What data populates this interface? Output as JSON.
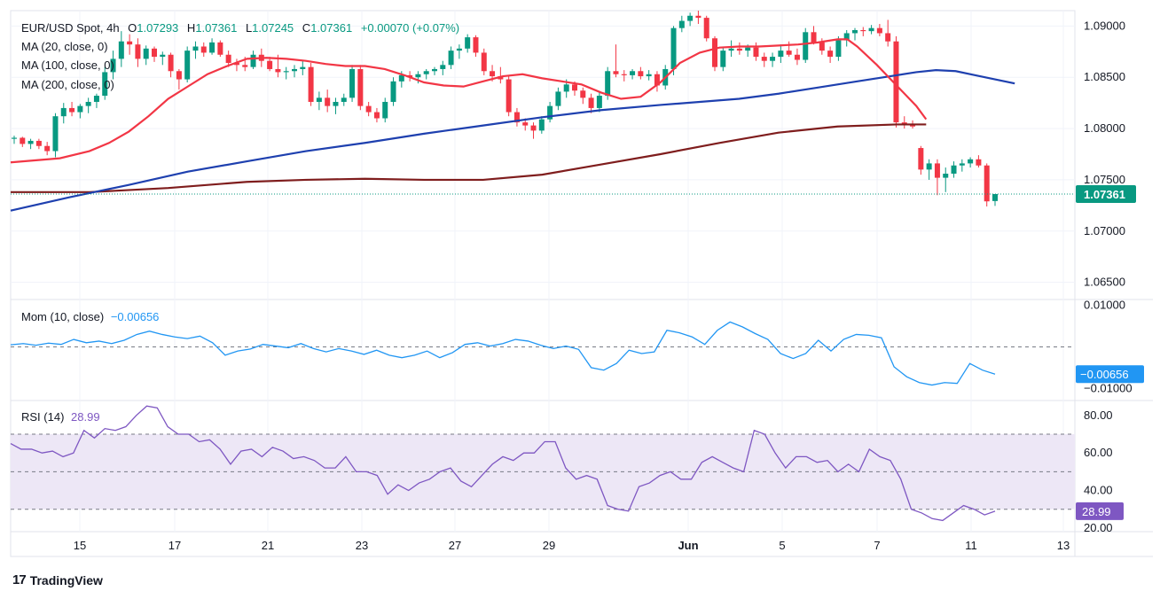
{
  "legend": {
    "symbol": "EUR/USD Spot, 4h",
    "open_label": "O",
    "open": "1.07293",
    "high_label": "H",
    "high": "1.07361",
    "low_label": "L",
    "low": "1.07245",
    "close_label": "C",
    "close": "1.07361",
    "change": "+0.00070 (+0.07%)",
    "ma20": "MA (20, close, 0)",
    "ma100": "MA (100, close, 0)",
    "ma200": "MA (200, close, 0)",
    "mom_title": "Mom (10, close)",
    "mom_value": "−0.00656",
    "rsi_title": "RSI (14)",
    "rsi_value": "28.99"
  },
  "brand": {
    "name": "TradingView",
    "logo": "17"
  },
  "colors": {
    "up": "#089981",
    "down": "#f23645",
    "ma20": "#f23645",
    "ma100": "#1e40af",
    "ma200": "#7f1d1d",
    "mom": "#2196f3",
    "rsi": "#7e57c2",
    "rsi_band": "#ede7f6",
    "price_badge": "#089981",
    "mom_badge": "#2196f3",
    "rsi_badge": "#7e57c2"
  },
  "chart_data": [
    {
      "type": "candlestick",
      "title": "EUR/USD Spot, 4h",
      "x_ticks": [
        "15",
        "17",
        "21",
        "23",
        "27",
        "29",
        "Jun",
        "5",
        "7",
        "11",
        "13"
      ],
      "y_ticks": [
        "1.09000",
        "1.08500",
        "1.08000",
        "1.07500",
        "1.07000",
        "1.06500"
      ],
      "ylim": [
        1.0635,
        1.0915
      ],
      "last_price_label": "1.07361",
      "last_price": 1.07361,
      "candles": [
        [
          1.079,
          1.0793,
          1.0785,
          1.0791
        ],
        [
          1.0791,
          1.0792,
          1.0782,
          1.0785
        ],
        [
          1.0785,
          1.079,
          1.078,
          1.0788
        ],
        [
          1.0788,
          1.079,
          1.078,
          1.0783
        ],
        [
          1.0783,
          1.0787,
          1.0774,
          1.0778
        ],
        [
          1.0778,
          1.0815,
          1.0772,
          1.0812
        ],
        [
          1.0812,
          1.0825,
          1.0805,
          1.082
        ],
        [
          1.082,
          1.0826,
          1.0812,
          1.0816
        ],
        [
          1.0816,
          1.0824,
          1.081,
          1.0822
        ],
        [
          1.0822,
          1.083,
          1.0815,
          1.0826
        ],
        [
          1.0826,
          1.0834,
          1.082,
          1.0832
        ],
        [
          1.0832,
          1.086,
          1.0828,
          1.0855
        ],
        [
          1.0855,
          1.0876,
          1.0848,
          1.0868
        ],
        [
          1.0868,
          1.0895,
          1.086,
          1.0885
        ],
        [
          1.0885,
          1.0892,
          1.0872,
          1.0882
        ],
        [
          1.0882,
          1.0888,
          1.086,
          1.0868
        ],
        [
          1.0868,
          1.0881,
          1.0862,
          1.0878
        ],
        [
          1.0878,
          1.088,
          1.0865,
          1.087
        ],
        [
          1.087,
          1.0875,
          1.0862,
          1.0872
        ],
        [
          1.0872,
          1.0874,
          1.085,
          1.0856
        ],
        [
          1.0856,
          1.0858,
          1.0838,
          1.0848
        ],
        [
          1.0848,
          1.088,
          1.0845,
          1.0876
        ],
        [
          1.0876,
          1.0885,
          1.0868,
          1.088
        ],
        [
          1.088,
          1.0884,
          1.087,
          1.0874
        ],
        [
          1.0874,
          1.0888,
          1.0872,
          1.0884
        ],
        [
          1.0884,
          1.0886,
          1.087,
          1.0872
        ],
        [
          1.0872,
          1.0876,
          1.086,
          1.0864
        ],
        [
          1.0864,
          1.0868,
          1.0856,
          1.0862
        ],
        [
          1.0862,
          1.087,
          1.0856,
          1.086
        ],
        [
          1.086,
          1.0876,
          1.0858,
          1.0872
        ],
        [
          1.0872,
          1.0878,
          1.086,
          1.0866
        ],
        [
          1.0866,
          1.087,
          1.0856,
          1.0858
        ],
        [
          1.0858,
          1.0872,
          1.085,
          1.0855
        ],
        [
          1.0855,
          1.086,
          1.0848,
          1.0856
        ],
        [
          1.0856,
          1.0862,
          1.085,
          1.0858
        ],
        [
          1.0858,
          1.0866,
          1.0852,
          1.086
        ],
        [
          1.086,
          1.0864,
          1.0822,
          1.0826
        ],
        [
          1.0826,
          1.0836,
          1.0818,
          1.083
        ],
        [
          1.083,
          1.0838,
          1.0816,
          1.0822
        ],
        [
          1.0822,
          1.083,
          1.0814,
          1.0826
        ],
        [
          1.0826,
          1.0834,
          1.0822,
          1.083
        ],
        [
          1.083,
          1.0862,
          1.0826,
          1.0858
        ],
        [
          1.0858,
          1.0862,
          1.0818,
          1.0822
        ],
        [
          1.0822,
          1.0826,
          1.0812,
          1.0816
        ],
        [
          1.0816,
          1.082,
          1.0806,
          1.081
        ],
        [
          1.081,
          1.083,
          1.0806,
          1.0826
        ],
        [
          1.0826,
          1.085,
          1.0822,
          1.0846
        ],
        [
          1.0846,
          1.0856,
          1.084,
          1.0852
        ],
        [
          1.0852,
          1.0856,
          1.0846,
          1.085
        ],
        [
          1.085,
          1.0856,
          1.0844,
          1.0853
        ],
        [
          1.0853,
          1.0858,
          1.0848,
          1.0856
        ],
        [
          1.0856,
          1.086,
          1.0852,
          1.0858
        ],
        [
          1.0858,
          1.0866,
          1.0852,
          1.0862
        ],
        [
          1.0862,
          1.088,
          1.0858,
          1.0876
        ],
        [
          1.0876,
          1.0882,
          1.0868,
          1.0878
        ],
        [
          1.0878,
          1.0892,
          1.0874,
          1.0889
        ],
        [
          1.0889,
          1.0891,
          1.087,
          1.0874
        ],
        [
          1.0874,
          1.0878,
          1.0852,
          1.0856
        ],
        [
          1.0856,
          1.0862,
          1.0846,
          1.0851
        ],
        [
          1.0851,
          1.086,
          1.0844,
          1.0848
        ],
        [
          1.0848,
          1.0852,
          1.0812,
          1.0816
        ],
        [
          1.0816,
          1.082,
          1.0802,
          1.0806
        ],
        [
          1.0806,
          1.081,
          1.0798,
          1.0803
        ],
        [
          1.0803,
          1.0806,
          1.079,
          1.0798
        ],
        [
          1.0798,
          1.0812,
          1.0795,
          1.0809
        ],
        [
          1.0809,
          1.0826,
          1.0806,
          1.0822
        ],
        [
          1.0822,
          1.084,
          1.0818,
          1.0836
        ],
        [
          1.0836,
          1.0848,
          1.083,
          1.0843
        ],
        [
          1.0843,
          1.0846,
          1.0832,
          1.0837
        ],
        [
          1.0837,
          1.084,
          1.0824,
          1.083
        ],
        [
          1.083,
          1.0834,
          1.0815,
          1.082
        ],
        [
          1.082,
          1.0836,
          1.0816,
          1.0832
        ],
        [
          1.0832,
          1.086,
          1.0828,
          1.0856
        ],
        [
          1.0856,
          1.0882,
          1.085,
          1.0853
        ],
        [
          1.0853,
          1.0857,
          1.0846,
          1.0852
        ],
        [
          1.0852,
          1.0858,
          1.0848,
          1.0856
        ],
        [
          1.0856,
          1.086,
          1.0848,
          1.0851
        ],
        [
          1.0851,
          1.0857,
          1.0847,
          1.0853
        ],
        [
          1.0853,
          1.0856,
          1.0836,
          1.0842
        ],
        [
          1.0842,
          1.0862,
          1.0838,
          1.0858
        ],
        [
          1.0858,
          1.09,
          1.0852,
          1.0898
        ],
        [
          1.0898,
          1.091,
          1.0894,
          1.0905
        ],
        [
          1.0905,
          1.0913,
          1.09,
          1.091
        ],
        [
          1.091,
          1.0915,
          1.0902,
          1.0908
        ],
        [
          1.0908,
          1.091,
          1.0885,
          1.0888
        ],
        [
          1.0888,
          1.089,
          1.0856,
          1.086
        ],
        [
          1.086,
          1.088,
          1.0856,
          1.0876
        ],
        [
          1.0876,
          1.0886,
          1.087,
          1.0878
        ],
        [
          1.0878,
          1.0884,
          1.0872,
          1.0876
        ],
        [
          1.0876,
          1.0882,
          1.087,
          1.0879
        ],
        [
          1.0879,
          1.0884,
          1.0866,
          1.087
        ],
        [
          1.087,
          1.0874,
          1.086,
          1.0866
        ],
        [
          1.0866,
          1.0874,
          1.086,
          1.087
        ],
        [
          1.087,
          1.0882,
          1.0864,
          1.0876
        ],
        [
          1.0876,
          1.0885,
          1.087,
          1.0872
        ],
        [
          1.0872,
          1.0878,
          1.0862,
          1.0867
        ],
        [
          1.0867,
          1.0898,
          1.0864,
          1.0894
        ],
        [
          1.0894,
          1.09,
          1.0882,
          1.0884
        ],
        [
          1.0884,
          1.0888,
          1.0872,
          1.0876
        ],
        [
          1.0876,
          1.088,
          1.0864,
          1.087
        ],
        [
          1.087,
          1.089,
          1.0866,
          1.0886
        ],
        [
          1.0886,
          1.0896,
          1.088,
          1.0893
        ],
        [
          1.0893,
          1.0898,
          1.0886,
          1.0896
        ],
        [
          1.0896,
          1.0899,
          1.089,
          1.0895
        ],
        [
          1.0895,
          1.0901,
          1.0892,
          1.0898
        ],
        [
          1.0898,
          1.0902,
          1.089,
          1.0893
        ],
        [
          1.0893,
          1.0906,
          1.088,
          1.0885
        ],
        [
          1.0885,
          1.089,
          1.0801,
          1.0806
        ],
        [
          1.0806,
          1.0812,
          1.08,
          1.0804
        ],
        [
          1.0804,
          1.0808,
          1.08,
          1.0802
        ],
        [
          1.0781,
          1.0783,
          1.0755,
          1.076
        ],
        [
          1.076,
          1.077,
          1.075,
          1.0766
        ],
        [
          1.0766,
          1.077,
          1.0735,
          1.0752
        ],
        [
          1.0752,
          1.0762,
          1.0738,
          1.0756
        ],
        [
          1.0756,
          1.0768,
          1.0752,
          1.0764
        ],
        [
          1.0764,
          1.077,
          1.0758,
          1.0766
        ],
        [
          1.0766,
          1.0772,
          1.0762,
          1.077
        ],
        [
          1.077,
          1.0774,
          1.0762,
          1.0764
        ],
        [
          1.0764,
          1.0766,
          1.0724,
          1.0729
        ],
        [
          1.07293,
          1.07361,
          1.07245,
          1.07361
        ]
      ],
      "ma20": [
        1.0767,
        1.0771,
        1.0778,
        1.0786,
        1.0797,
        1.0812,
        1.0829,
        1.0841,
        1.0853,
        1.0861,
        1.0868,
        1.0869,
        1.0868,
        1.0866,
        1.0863,
        1.0861,
        1.0861,
        1.0858,
        1.0852,
        1.0845,
        1.0842,
        1.0841,
        1.0846,
        1.0851,
        1.0853,
        1.0849,
        1.0846,
        1.0843,
        1.0835,
        1.0829,
        1.0831,
        1.0845,
        1.0864,
        1.0874,
        1.0879,
        1.088,
        1.088,
        1.0881,
        1.0882,
        1.0884,
        1.0887,
        1.0887,
        1.088,
        1.0862,
        1.0842,
        1.0822,
        1.0809
      ],
      "ma20_x": [
        0.0,
        0.05,
        0.08,
        0.1,
        0.12,
        0.14,
        0.16,
        0.18,
        0.2,
        0.22,
        0.24,
        0.26,
        0.28,
        0.3,
        0.32,
        0.34,
        0.36,
        0.38,
        0.4,
        0.42,
        0.44,
        0.46,
        0.48,
        0.5,
        0.52,
        0.54,
        0.56,
        0.58,
        0.6,
        0.62,
        0.64,
        0.66,
        0.68,
        0.7,
        0.72,
        0.74,
        0.76,
        0.78,
        0.8,
        0.82,
        0.84,
        0.85,
        0.86,
        0.88,
        0.9,
        0.92,
        0.93
      ],
      "ma100": [
        1.072,
        1.0733,
        1.0745,
        1.0758,
        1.0768,
        1.0778,
        1.0786,
        1.0795,
        1.0803,
        1.0811,
        1.0818,
        1.0823,
        1.0826,
        1.0829,
        1.0834,
        1.084,
        1.0846,
        1.0852,
        1.0855,
        1.0857,
        1.0856,
        1.0852,
        1.0848,
        1.0844
      ],
      "ma100_x": [
        0.0,
        0.06,
        0.12,
        0.18,
        0.24,
        0.3,
        0.36,
        0.42,
        0.48,
        0.54,
        0.6,
        0.66,
        0.7,
        0.74,
        0.78,
        0.82,
        0.86,
        0.9,
        0.92,
        0.94,
        0.96,
        0.98,
        1.0,
        1.02
      ],
      "ma200": [
        1.0738,
        1.0738,
        1.0742,
        1.0748,
        1.075,
        1.0751,
        1.075,
        1.075,
        1.0755,
        1.0765,
        1.0775,
        1.0786,
        1.0796,
        1.0802,
        1.0804,
        1.0804
      ],
      "ma200_x": [
        0.0,
        0.08,
        0.16,
        0.24,
        0.3,
        0.36,
        0.42,
        0.48,
        0.54,
        0.6,
        0.66,
        0.72,
        0.78,
        0.84,
        0.9,
        0.93
      ],
      "x_range": [
        0,
        1.0
      ]
    },
    {
      "type": "line",
      "title": "Mom (10, close)",
      "y_ticks": [
        "0.01000",
        "−0.01000"
      ],
      "ylim": [
        -0.0125,
        0.011
      ],
      "zero_line": 0.0,
      "last_value": -0.00656,
      "values": [
        0.0005,
        0.0008,
        0.0004,
        0.0009,
        0.0006,
        0.0018,
        0.001,
        0.0014,
        0.0008,
        0.0016,
        0.003,
        0.0038,
        0.003,
        0.0024,
        0.002,
        0.0026,
        0.001,
        -0.002,
        -0.001,
        -0.0005,
        0.0006,
        0.0002,
        -0.0002,
        0.0008,
        -0.0004,
        -0.0012,
        -0.0004,
        -0.001,
        -0.0018,
        -0.0008,
        -0.002,
        -0.0026,
        -0.002,
        -0.001,
        -0.0026,
        -0.0014,
        0.0006,
        0.001,
        0.0002,
        0.0008,
        0.0018,
        0.0014,
        0.0004,
        -0.0004,
        0.0002,
        -0.0006,
        -0.005,
        -0.0056,
        -0.004,
        -0.0008,
        -0.0016,
        -0.0012,
        0.004,
        0.0034,
        0.0024,
        0.0006,
        0.004,
        0.006,
        0.0048,
        0.0032,
        0.0018,
        -0.0016,
        -0.0028,
        -0.0016,
        0.0016,
        -0.001,
        0.0018,
        0.003,
        0.0028,
        0.0022,
        -0.0048,
        -0.0072,
        -0.0086,
        -0.0092,
        -0.0086,
        -0.0088,
        -0.004,
        -0.0056,
        -0.00656
      ],
      "x_range": [
        0,
        1.0
      ]
    },
    {
      "type": "line",
      "title": "RSI (14)",
      "y_ticks": [
        "80.00",
        "60.00",
        "40.00",
        "20.00"
      ],
      "ylim": [
        19,
        87
      ],
      "band": [
        30,
        70
      ],
      "mid": 50,
      "last_value": 28.99,
      "values": [
        65,
        62,
        62,
        60,
        61,
        58,
        60,
        72,
        68,
        73,
        72,
        74,
        80,
        85,
        84,
        74,
        70,
        70,
        66,
        67,
        62,
        54,
        61,
        62,
        58,
        63,
        61,
        57,
        58,
        56,
        52,
        52,
        58,
        50,
        50,
        48,
        38,
        43,
        40,
        44,
        46,
        50,
        52,
        45,
        42,
        48,
        54,
        58,
        56,
        60,
        60,
        66,
        66,
        52,
        46,
        48,
        46,
        32,
        30,
        29,
        42,
        44,
        48,
        50,
        46,
        46,
        55,
        58,
        55,
        52,
        50,
        72,
        70,
        60,
        52,
        58,
        58,
        55,
        56,
        50,
        54,
        50,
        62,
        58,
        56,
        46,
        30,
        28,
        25,
        24,
        28,
        32,
        30,
        27,
        28.99
      ],
      "x_range": [
        0,
        1.0
      ]
    }
  ]
}
